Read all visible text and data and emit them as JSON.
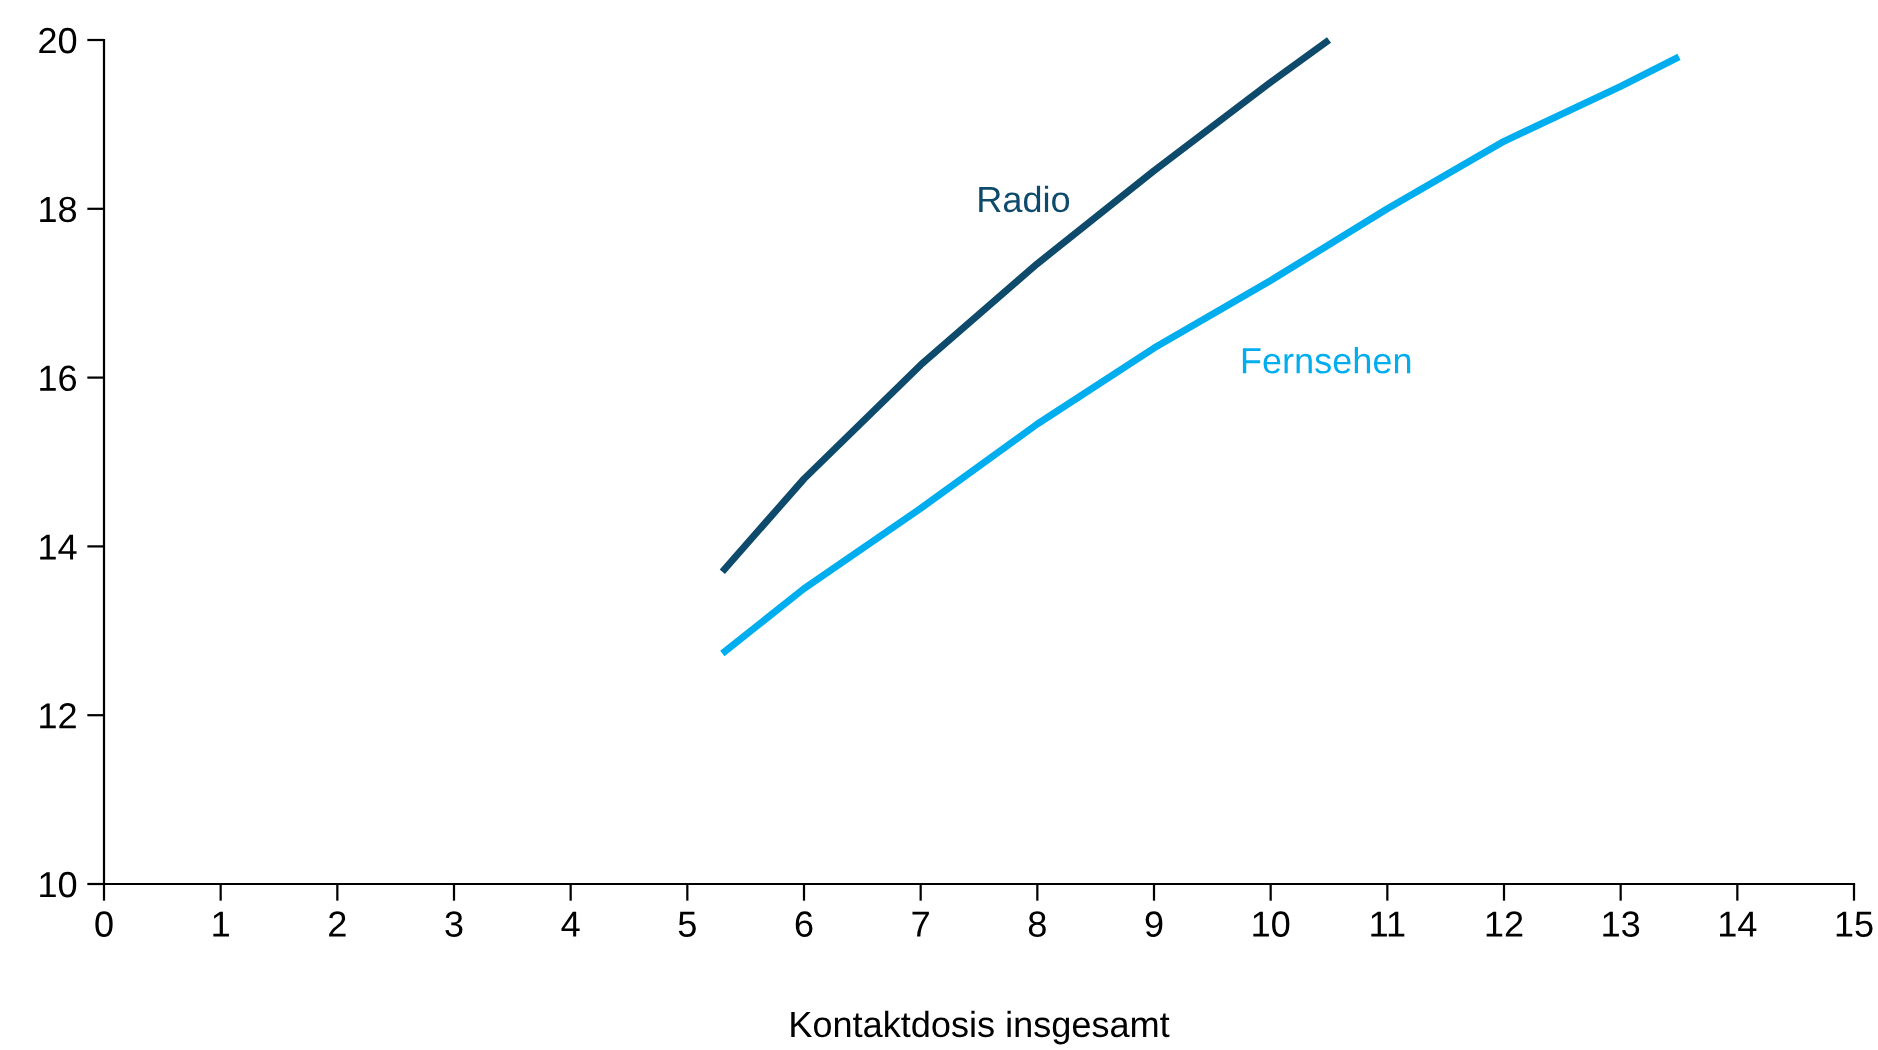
{
  "chart_data": {
    "type": "line",
    "xlabel": "Kontaktdosis insgesamt",
    "series": [
      {
        "name": "Radio",
        "color": "#0d4a6b",
        "x": [
          5.3,
          6,
          7,
          8,
          9,
          10,
          10.5
        ],
        "values": [
          13.7,
          14.8,
          16.15,
          17.35,
          18.45,
          19.5,
          20.0
        ]
      },
      {
        "name": "Fernsehen",
        "color": "#00aeef",
        "x": [
          5.3,
          6,
          7,
          8,
          9,
          10,
          11,
          12,
          13,
          13.5
        ],
        "values": [
          12.73,
          13.5,
          14.45,
          15.45,
          16.35,
          17.15,
          18.0,
          18.8,
          19.45,
          19.8
        ]
      }
    ],
    "xlim": [
      0,
      15
    ],
    "xticks": [
      0,
      1,
      2,
      3,
      4,
      5,
      6,
      7,
      8,
      9,
      10,
      11,
      12,
      13,
      14,
      15
    ],
    "ylim": [
      10,
      20
    ],
    "yticks": [
      10,
      12,
      14,
      16,
      18,
      20
    ],
    "grid": false,
    "legend": false,
    "marker": "none",
    "line_style": "solid"
  }
}
